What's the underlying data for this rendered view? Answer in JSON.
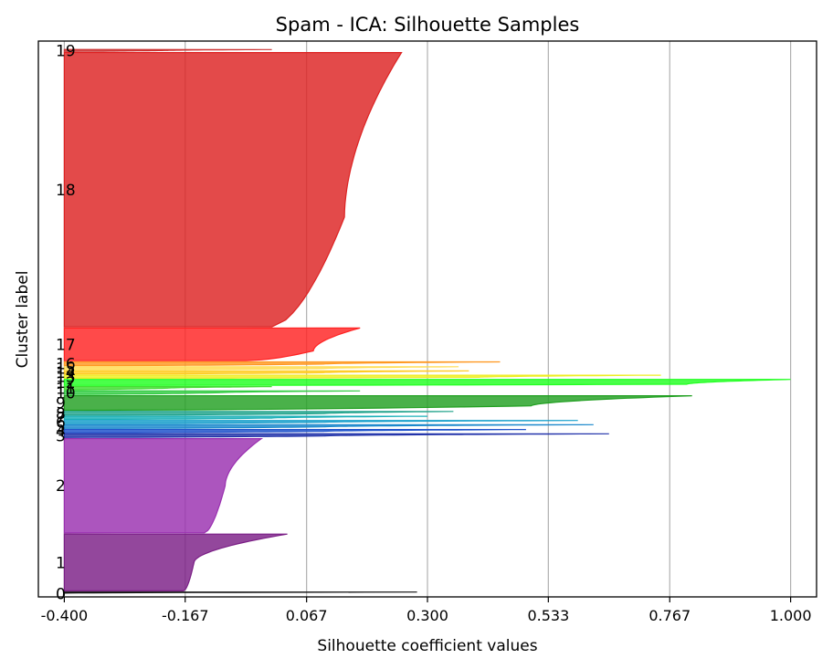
{
  "chart_data": {
    "type": "area",
    "title": "Spam - ICA: Silhouette Samples",
    "xlabel": "Silhouette coefficient values",
    "ylabel": "Cluster label",
    "xlim": [
      -0.45,
      1.05
    ],
    "ylim": [
      0,
      4600
    ],
    "xticks": [
      "-0.400",
      "-0.167",
      "0.067",
      "0.300",
      "0.533",
      "0.767",
      "1.000"
    ],
    "xtick_values": [
      -0.4,
      -0.167,
      0.067,
      0.3,
      0.533,
      0.767,
      1.0
    ],
    "grid": "vertical",
    "fill_baseline": -0.4,
    "clusters": [
      {
        "label": "0",
        "color": "#111111",
        "count": 30,
        "max": 0.28,
        "min": -0.4,
        "knee": [
          0.7,
          -0.4
        ]
      },
      {
        "label": "1",
        "color": "#7b1f86",
        "count": 470,
        "max": 0.03,
        "min": -0.17,
        "knee": [
          0.5,
          -0.15
        ]
      },
      {
        "label": "2",
        "color": "#9a30b0",
        "count": 780,
        "max": -0.02,
        "min": -0.13,
        "knee": [
          0.5,
          -0.09
        ]
      },
      {
        "label": "3",
        "color": "#2233aa",
        "count": 30,
        "max": 0.65,
        "min": -0.35,
        "knee": [
          0.4,
          0.1
        ]
      },
      {
        "label": "4",
        "color": "#2255cc",
        "count": 25,
        "max": 0.49,
        "min": -0.35,
        "knee": [
          0.4,
          0.1
        ]
      },
      {
        "label": "5",
        "color": "#1a88cc",
        "count": 30,
        "max": 0.62,
        "min": -0.3,
        "knee": [
          0.4,
          0.1
        ]
      },
      {
        "label": "6",
        "color": "#1aa0cc",
        "count": 25,
        "max": 0.59,
        "min": -0.3,
        "knee": [
          0.4,
          0.1
        ]
      },
      {
        "label": "7",
        "color": "#1ab0b8",
        "count": 25,
        "max": 0.3,
        "min": -0.3,
        "knee": [
          0.4,
          0.0
        ]
      },
      {
        "label": "8",
        "color": "#22a38c",
        "count": 30,
        "max": 0.35,
        "min": -0.3,
        "knee": [
          0.4,
          0.1
        ]
      },
      {
        "label": "9",
        "color": "#22a022",
        "count": 120,
        "max": 0.81,
        "min": -0.35,
        "knee": [
          0.3,
          0.5
        ]
      },
      {
        "label": "10",
        "color": "#33cc44",
        "count": 30,
        "max": 0.17,
        "min": -0.4,
        "knee": [
          0.5,
          -0.1
        ]
      },
      {
        "label": "11",
        "color": "#44dd33",
        "count": 25,
        "max": 0.0,
        "min": -0.4,
        "knee": [
          0.5,
          -0.2
        ]
      },
      {
        "label": "12",
        "color": "#22ff22",
        "count": 50,
        "max": 1.0,
        "min": -0.3,
        "knee": [
          0.2,
          0.8
        ]
      },
      {
        "label": "13",
        "color": "#eeee22",
        "count": 25,
        "max": 0.75,
        "min": -0.3,
        "knee": [
          0.3,
          0.4
        ]
      },
      {
        "label": "14",
        "color": "#ffcc22",
        "count": 25,
        "max": 0.38,
        "min": -0.3,
        "knee": [
          0.4,
          0.1
        ]
      },
      {
        "label": "15",
        "color": "#ffdd55",
        "count": 25,
        "max": 0.36,
        "min": -0.3,
        "knee": [
          0.4,
          0.1
        ]
      },
      {
        "label": "16",
        "color": "#ff9922",
        "count": 30,
        "max": 0.44,
        "min": -0.3,
        "knee": [
          0.4,
          0.1
        ]
      },
      {
        "label": "17",
        "color": "#ff2222",
        "count": 270,
        "max": 0.17,
        "min": -0.05,
        "knee": [
          0.3,
          0.08
        ]
      },
      {
        "label": "18",
        "color": "#dd2222",
        "count": 2270,
        "max": 0.25,
        "min": 0.0,
        "knee": [
          0.4,
          0.14
        ]
      },
      {
        "label": "19",
        "color": "#cc3333",
        "count": 15,
        "max": 0.0,
        "min": -0.4,
        "knee": [
          0.5,
          -0.2
        ]
      }
    ]
  }
}
